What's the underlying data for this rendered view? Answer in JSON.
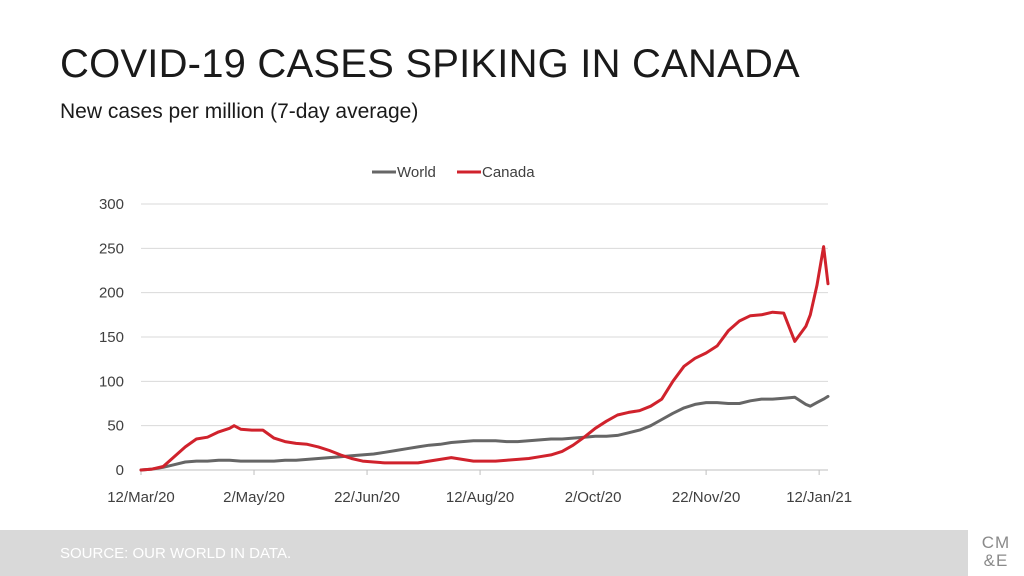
{
  "slide": {
    "title": "COVID-19 CASES SPIKING IN CANADA",
    "subtitle": "New cases per million (7-day average)",
    "source": "SOURCE: OUR WORLD IN DATA.",
    "logo_line1": "CM",
    "logo_line2": "&E"
  },
  "colors": {
    "world": "#666666",
    "canada": "#d0222c",
    "grid": "#d9d9d9",
    "axis_text": "#404040"
  },
  "chart_data": {
    "type": "line",
    "title": "",
    "xlabel": "",
    "ylabel": "",
    "ylim": [
      0,
      300
    ],
    "yticks": [
      0,
      50,
      100,
      150,
      200,
      250,
      300
    ],
    "x_range": [
      0,
      310
    ],
    "x_unit": "days since 12/Mar/20",
    "xticks": [
      {
        "label": "12/Mar/20",
        "day": 0
      },
      {
        "label": "2/May/20",
        "day": 51
      },
      {
        "label": "22/Jun/20",
        "day": 102
      },
      {
        "label": "12/Aug/20",
        "day": 153
      },
      {
        "label": "2/Oct/20",
        "day": 204
      },
      {
        "label": "22/Nov/20",
        "day": 255
      },
      {
        "label": "12/Jan/21",
        "day": 306
      }
    ],
    "legend": [
      "World",
      "Canada"
    ],
    "legend_position": "top-center",
    "grid": true,
    "series": [
      {
        "name": "World",
        "x": [
          0,
          5,
          10,
          15,
          20,
          25,
          30,
          35,
          40,
          45,
          50,
          55,
          60,
          65,
          70,
          75,
          80,
          85,
          90,
          95,
          100,
          105,
          110,
          115,
          120,
          125,
          130,
          135,
          140,
          145,
          150,
          155,
          160,
          165,
          170,
          175,
          180,
          185,
          190,
          195,
          200,
          205,
          210,
          215,
          220,
          225,
          230,
          235,
          240,
          245,
          250,
          255,
          260,
          265,
          270,
          275,
          280,
          285,
          290,
          295,
          300,
          302,
          305,
          308,
          310
        ],
        "values": [
          0,
          1,
          3,
          6,
          9,
          10,
          10,
          11,
          11,
          10,
          10,
          10,
          10,
          11,
          11,
          12,
          13,
          14,
          15,
          16,
          17,
          18,
          20,
          22,
          24,
          26,
          28,
          29,
          31,
          32,
          33,
          33,
          33,
          32,
          32,
          33,
          34,
          35,
          35,
          36,
          37,
          38,
          38,
          39,
          42,
          45,
          50,
          57,
          64,
          70,
          74,
          76,
          76,
          75,
          75,
          78,
          80,
          80,
          81,
          82,
          74,
          72,
          76,
          80,
          83
        ]
      },
      {
        "name": "Canada",
        "x": [
          0,
          5,
          10,
          15,
          20,
          25,
          30,
          35,
          40,
          42,
          45,
          50,
          55,
          60,
          65,
          70,
          75,
          80,
          85,
          90,
          95,
          100,
          105,
          110,
          115,
          120,
          125,
          130,
          135,
          140,
          145,
          150,
          155,
          160,
          165,
          170,
          175,
          180,
          185,
          190,
          195,
          200,
          205,
          210,
          215,
          220,
          225,
          230,
          235,
          240,
          245,
          250,
          255,
          260,
          265,
          270,
          275,
          280,
          285,
          290,
          295,
          300,
          302,
          305,
          308,
          310
        ],
        "values": [
          0,
          1,
          4,
          15,
          26,
          35,
          37,
          43,
          47,
          50,
          46,
          45,
          45,
          36,
          32,
          30,
          29,
          26,
          22,
          17,
          13,
          10,
          9,
          8,
          8,
          8,
          8,
          10,
          12,
          14,
          12,
          10,
          10,
          10,
          11,
          12,
          13,
          15,
          17,
          21,
          28,
          37,
          47,
          55,
          62,
          65,
          67,
          72,
          80,
          100,
          117,
          126,
          132,
          140,
          157,
          168,
          174,
          175,
          178,
          177,
          145,
          162,
          175,
          208,
          252,
          210
        ]
      }
    ]
  }
}
